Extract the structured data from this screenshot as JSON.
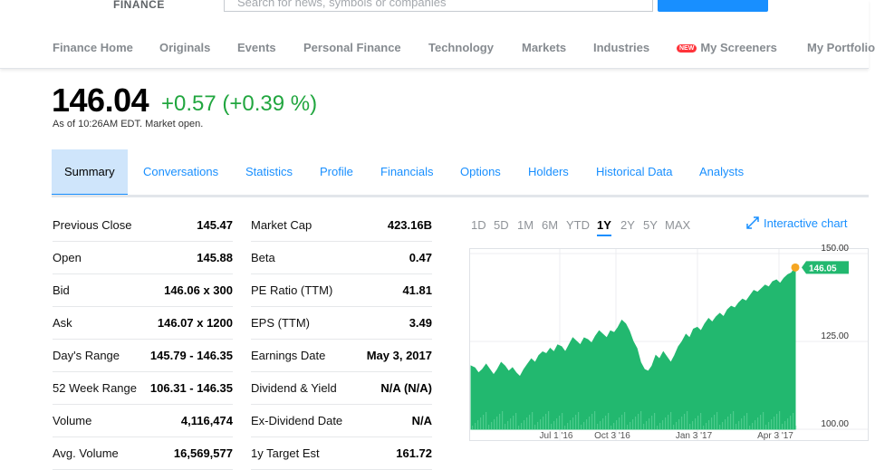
{
  "header": {
    "logo_text": "FINANCE",
    "search_placeholder": "Search for news, symbols or companies"
  },
  "nav": [
    {
      "label": "Finance Home"
    },
    {
      "label": "Originals"
    },
    {
      "label": "Events"
    },
    {
      "label": "Personal Finance"
    },
    {
      "label": "Technology"
    },
    {
      "label": "Markets"
    },
    {
      "label": "Industries"
    },
    {
      "label": "My Screeners",
      "badge": "NEW"
    },
    {
      "label": "My Portfolio"
    }
  ],
  "quote": {
    "price": "146.04",
    "change": "+0.57 (+0.39 %)",
    "as_of": "As of 10:26AM EDT. Market open.",
    "change_color": "#21a63f"
  },
  "tabs": [
    "Summary",
    "Conversations",
    "Statistics",
    "Profile",
    "Financials",
    "Options",
    "Holders",
    "Historical Data",
    "Analysts"
  ],
  "stats_left": [
    {
      "label": "Previous Close",
      "value": "145.47"
    },
    {
      "label": "Open",
      "value": "145.88"
    },
    {
      "label": "Bid",
      "value": "146.06 x 300"
    },
    {
      "label": "Ask",
      "value": "146.07 x 1200"
    },
    {
      "label": "Day's Range",
      "value": "145.79 - 146.35"
    },
    {
      "label": "52 Week Range",
      "value": "106.31 - 146.35"
    },
    {
      "label": "Volume",
      "value": "4,116,474"
    },
    {
      "label": "Avg. Volume",
      "value": "16,569,577"
    }
  ],
  "stats_right": [
    {
      "label": "Market Cap",
      "value": "423.16B"
    },
    {
      "label": "Beta",
      "value": "0.47"
    },
    {
      "label": "PE Ratio (TTM)",
      "value": "41.81"
    },
    {
      "label": "EPS (TTM)",
      "value": "3.49"
    },
    {
      "label": "Earnings Date",
      "value": "May 3, 2017"
    },
    {
      "label": "Dividend & Yield",
      "value": "N/A (N/A)"
    },
    {
      "label": "Ex-Dividend Date",
      "value": "N/A"
    },
    {
      "label": "1y Target Est",
      "value": "161.72"
    }
  ],
  "chart": {
    "ranges": [
      "1D",
      "5D",
      "1M",
      "6M",
      "YTD",
      "1Y",
      "2Y",
      "5Y",
      "MAX"
    ],
    "active_range": "1Y",
    "interactive_label": "Interactive chart"
  },
  "chart_data": {
    "type": "area",
    "x_tick_labels": [
      "Jul 1 '16",
      "Oct 3 '16",
      "Jan 3 '17",
      "Apr 3 '17"
    ],
    "y_tick_labels": [
      "150.00",
      "125.00",
      "100.00"
    ],
    "ylim": [
      100,
      150
    ],
    "last_value_label": "146.05",
    "fill_color": "#22b86f",
    "marker_color": "#f5a623",
    "series": [
      {
        "values": [
          118,
          117.5,
          116,
          117,
          118.5,
          117,
          115.5,
          117,
          119,
          118,
          116.5,
          117.5,
          116,
          115,
          117,
          118.5,
          120,
          119,
          121,
          122,
          121.5,
          123,
          122,
          124,
          123.5,
          122,
          124,
          126,
          125,
          124,
          126,
          125.5,
          124.5,
          126.5,
          128,
          127,
          126,
          128,
          127.5,
          129,
          131,
          130,
          128,
          125,
          123,
          119,
          117,
          116.5,
          118,
          121,
          120,
          122,
          120.5,
          119,
          121,
          123.5,
          125,
          127,
          126,
          128.5,
          129,
          128,
          130,
          131.5,
          130.5,
          132,
          133,
          132,
          134,
          135,
          134.5,
          136,
          137,
          136.5,
          138,
          139.5,
          139,
          140,
          141,
          140.5,
          142,
          142.5,
          141.5,
          143,
          144,
          144.5,
          146.05
        ]
      }
    ]
  }
}
